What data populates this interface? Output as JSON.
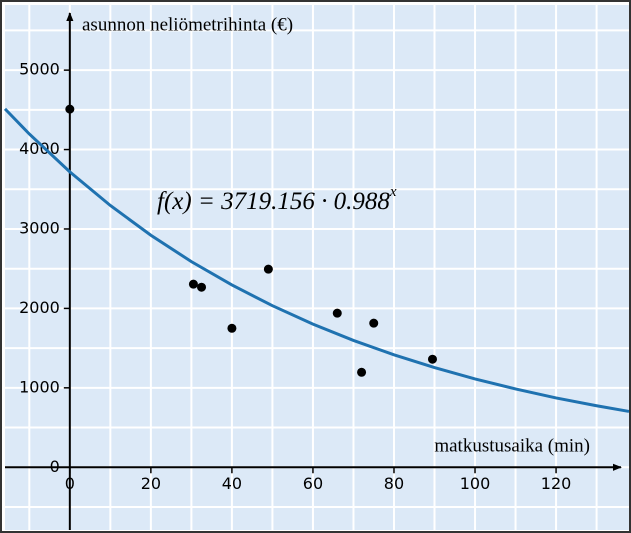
{
  "chart_data": {
    "type": "scatter",
    "y_label": "asunnon neliömetrihinta (€)",
    "x_label": "matkustusaika (min)",
    "annotation": {
      "text": "f(x) = 3719.156 · 0.988",
      "superscript": "x"
    },
    "xlim": [
      -16,
      138
    ],
    "ylim": [
      -790,
      5820
    ],
    "xticks": [
      0,
      20,
      40,
      60,
      80,
      100,
      120
    ],
    "yticks": [
      0,
      1000,
      2000,
      3000,
      4000,
      5000
    ],
    "xgrid": [
      -10,
      0,
      10,
      20,
      30,
      40,
      50,
      60,
      70,
      80,
      90,
      100,
      110,
      120,
      130
    ],
    "ygrid": [
      -500,
      0,
      500,
      1000,
      1500,
      2000,
      2500,
      3000,
      3500,
      4000,
      4500,
      5000,
      5500
    ],
    "grid_color": "#ffffff",
    "series": [
      {
        "type": "scatter",
        "color": "#000000",
        "x": [
          0,
          30.5,
          32.5,
          40,
          49,
          66,
          72,
          75,
          89.5
        ],
        "values": [
          4509,
          2305,
          2267,
          1750,
          2494,
          1940,
          1196,
          1814,
          1360
        ]
      },
      {
        "type": "line",
        "color": "#1f72b0",
        "x": [
          -16,
          -10,
          0,
          10,
          20,
          30,
          40,
          50,
          60,
          70,
          80,
          90,
          100,
          110,
          120,
          130,
          138
        ],
        "values": [
          4512,
          4196,
          3719,
          3296,
          2921,
          2589,
          2295,
          2034,
          1802,
          1597,
          1416,
          1255,
          1112,
          986,
          873,
          774,
          703
        ]
      }
    ]
  }
}
